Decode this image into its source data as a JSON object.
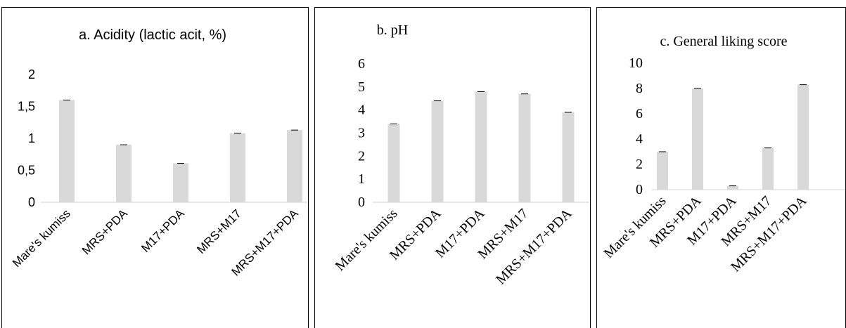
{
  "chart_data": [
    {
      "type": "bar",
      "title": "a. Acidity (lactic acit, %)",
      "xlabel": "",
      "ylabel": "",
      "categories": [
        "Mare's kumiss",
        "MRS+PDA",
        "M17+PDA",
        "MRS+M17",
        "MRS+M17+PDA"
      ],
      "values": [
        1.6,
        0.9,
        0.61,
        1.08,
        1.13
      ],
      "ylim": [
        0,
        2
      ],
      "yticks": [
        "0",
        "0,5",
        "1",
        "1,5",
        "2"
      ],
      "error_bars": true,
      "grid": false,
      "legend": "none",
      "bar_color": "#d9d9d9"
    },
    {
      "type": "bar",
      "title": "b. pH",
      "xlabel": "",
      "ylabel": "",
      "categories": [
        "Mare's kumiss",
        "MRS+PDA",
        "M17+PDA",
        "MRS+M17",
        "MRS+M17+PDA"
      ],
      "values": [
        3.4,
        4.4,
        4.8,
        4.7,
        3.9
      ],
      "ylim": [
        0,
        6
      ],
      "yticks": [
        "0",
        "1",
        "2",
        "3",
        "4",
        "5",
        "6"
      ],
      "error_bars": true,
      "grid": false,
      "legend": "none",
      "bar_color": "#d9d9d9"
    },
    {
      "type": "bar",
      "title": "c. General liking score",
      "xlabel": "",
      "ylabel": "",
      "categories": [
        "Mare's kumiss",
        "MRS+PDA",
        "M17+PDA",
        "MRS+M17",
        "MRS+M17+PDA"
      ],
      "values": [
        3.0,
        8.0,
        0.3,
        3.3,
        8.3
      ],
      "ylim": [
        0,
        10
      ],
      "yticks": [
        "0",
        "2",
        "4",
        "6",
        "8",
        "10"
      ],
      "error_bars": true,
      "grid": false,
      "legend": "none",
      "bar_color": "#d9d9d9"
    }
  ]
}
